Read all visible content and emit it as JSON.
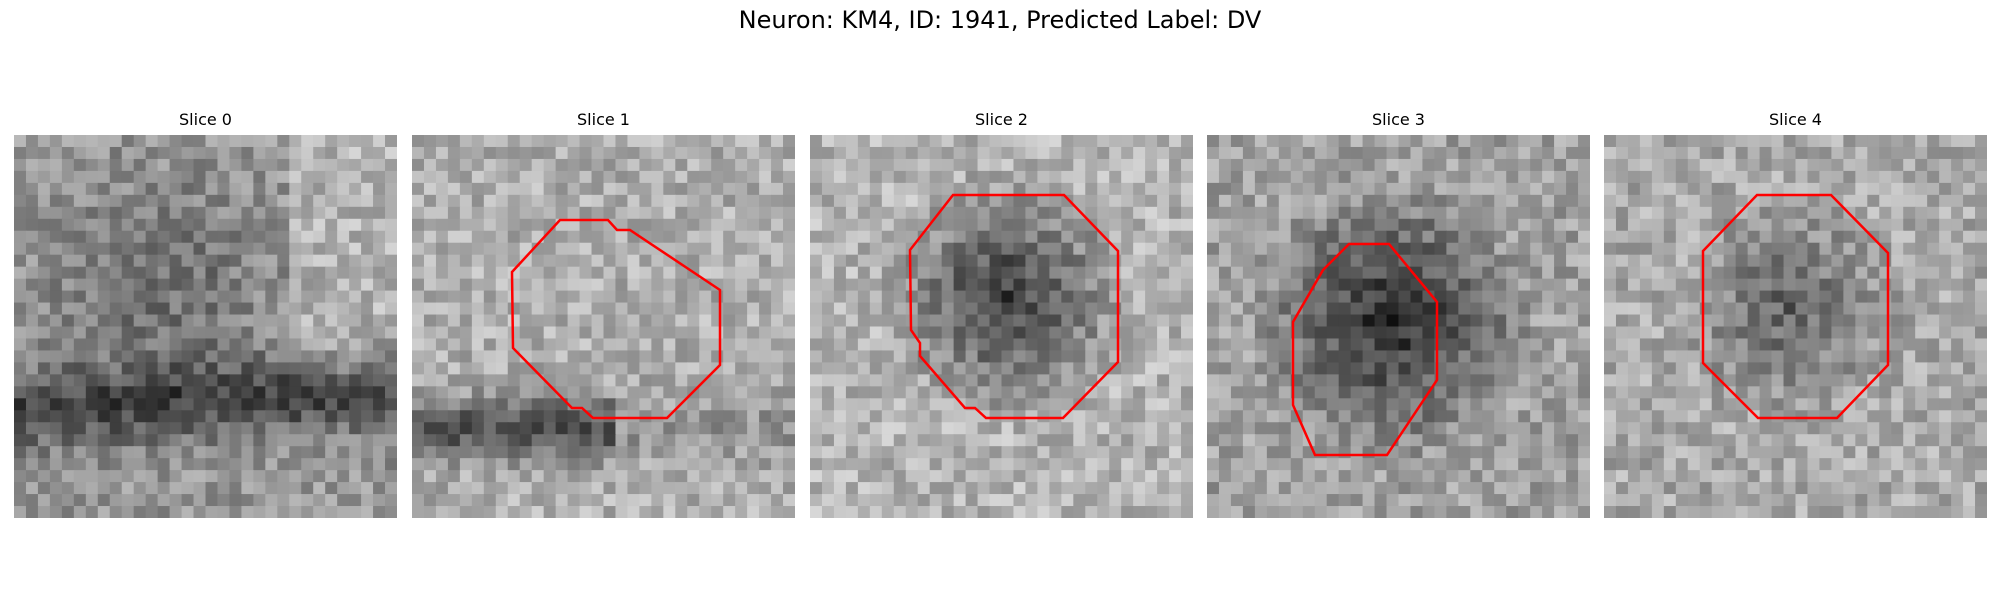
{
  "figure": {
    "title": "Neuron: KM4, ID: 1941, Predicted Label: DV"
  },
  "colors": {
    "contour": "#ff0000",
    "background": "#ffffff"
  },
  "panels": [
    {
      "label": "Slice 0",
      "has_contour": false
    },
    {
      "label": "Slice 1",
      "has_contour": true
    },
    {
      "label": "Slice 2",
      "has_contour": true
    },
    {
      "label": "Slice 3",
      "has_contour": true
    },
    {
      "label": "Slice 4",
      "has_contour": true
    }
  ]
}
